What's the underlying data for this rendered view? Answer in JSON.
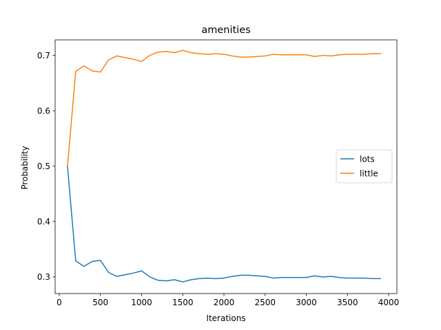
{
  "chart_data": {
    "type": "line",
    "title": "amenities",
    "xlabel": "Iterations",
    "ylabel": "Probability",
    "xlim": [
      -50,
      4100
    ],
    "ylim": [
      0.27,
      0.728
    ],
    "xticks": [
      0,
      500,
      1000,
      1500,
      2000,
      2500,
      3000,
      3500,
      4000
    ],
    "xtick_labels": [
      "0",
      "500",
      "1000",
      "1500",
      "2000",
      "2500",
      "3000",
      "3500",
      "4000"
    ],
    "yticks": [
      0.3,
      0.4,
      0.5,
      0.6,
      0.7
    ],
    "ytick_labels": [
      "0.3",
      "0.4",
      "0.5",
      "0.6",
      "0.7"
    ],
    "grid": false,
    "legend_position": "center-right",
    "x": [
      100,
      200,
      300,
      400,
      500,
      600,
      700,
      800,
      900,
      1000,
      1100,
      1200,
      1300,
      1400,
      1500,
      1600,
      1700,
      1800,
      1900,
      2000,
      2100,
      2200,
      2300,
      2400,
      2500,
      2600,
      2700,
      2800,
      2900,
      3000,
      3100,
      3200,
      3300,
      3400,
      3500,
      3600,
      3700,
      3800,
      3900
    ],
    "series": [
      {
        "name": "lots",
        "color": "#1f77b4",
        "values": [
          0.5,
          0.329,
          0.319,
          0.328,
          0.33,
          0.308,
          0.301,
          0.304,
          0.307,
          0.311,
          0.3,
          0.294,
          0.293,
          0.295,
          0.291,
          0.295,
          0.297,
          0.298,
          0.297,
          0.298,
          0.301,
          0.303,
          0.303,
          0.302,
          0.301,
          0.298,
          0.299,
          0.299,
          0.299,
          0.299,
          0.302,
          0.3,
          0.301,
          0.299,
          0.298,
          0.298,
          0.298,
          0.297,
          0.297
        ]
      },
      {
        "name": "little",
        "color": "#ff7f0e",
        "values": [
          0.5,
          0.671,
          0.681,
          0.672,
          0.67,
          0.692,
          0.699,
          0.696,
          0.693,
          0.689,
          0.7,
          0.706,
          0.707,
          0.705,
          0.709,
          0.705,
          0.703,
          0.702,
          0.703,
          0.702,
          0.699,
          0.697,
          0.697,
          0.698,
          0.699,
          0.702,
          0.701,
          0.701,
          0.701,
          0.701,
          0.698,
          0.7,
          0.699,
          0.701,
          0.702,
          0.702,
          0.702,
          0.703,
          0.703
        ]
      }
    ]
  }
}
